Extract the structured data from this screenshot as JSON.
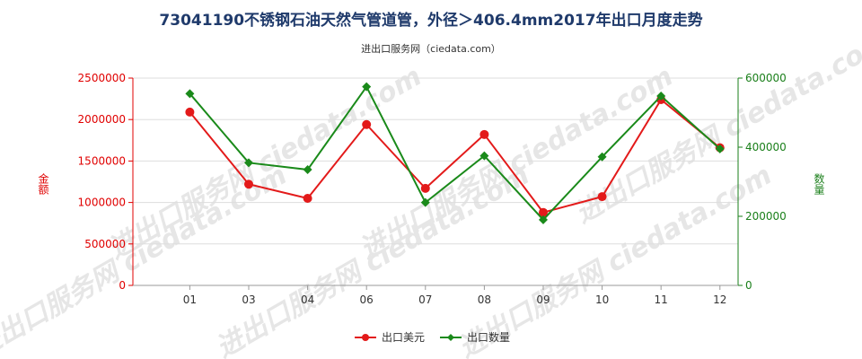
{
  "chart_data": {
    "type": "line",
    "title": "73041190不锈钢石油天然气管道管，外径＞406.4mm2017年出口月度走势",
    "subtitle": "进出口服务网（ciedata.com）",
    "watermark": "进出口服务网 ciedata.com",
    "categories": [
      "01",
      "03",
      "04",
      "06",
      "07",
      "08",
      "09",
      "10",
      "11",
      "12"
    ],
    "y_left": {
      "label": "金额",
      "ylim": [
        0,
        2500000
      ],
      "ticks": [
        "0",
        "500000",
        "1000000",
        "1500000",
        "2000000",
        "2500000"
      ],
      "color": "#e00000"
    },
    "y_right": {
      "label": "数量",
      "ylim": [
        0,
        600000
      ],
      "ticks": [
        "0",
        "200000",
        "400000",
        "600000"
      ],
      "color": "#1a7f1a"
    },
    "series": [
      {
        "name": "出口美元",
        "axis": "left",
        "color": "#e31a1a",
        "values": [
          2090000,
          1220000,
          1050000,
          1940000,
          1170000,
          1820000,
          880000,
          1070000,
          2240000,
          1660000
        ]
      },
      {
        "name": "出口数量",
        "axis": "right",
        "color": "#1a8a1a",
        "values": [
          555000,
          355000,
          335000,
          575000,
          240000,
          375000,
          190000,
          372000,
          548000,
          395000
        ]
      }
    ],
    "grid": true,
    "legend": "bottom-center"
  }
}
